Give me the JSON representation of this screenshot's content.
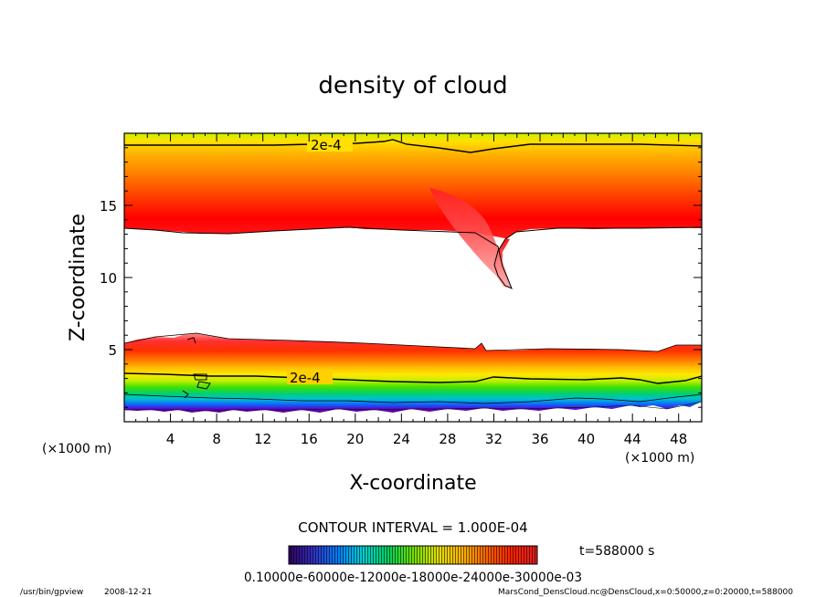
{
  "chart_data": {
    "type": "contour",
    "title": "density of cloud",
    "xlabel": "X-coordinate",
    "ylabel": "Z-coordinate",
    "x_unit": "(×1000 m)",
    "z_unit": "(×1000 m)",
    "xlim": [
      0,
      50
    ],
    "ylim": [
      0,
      20
    ],
    "x_ticks": [
      4,
      8,
      12,
      16,
      20,
      24,
      28,
      32,
      36,
      40,
      44,
      48
    ],
    "y_ticks": [
      5,
      10,
      15
    ],
    "contour_labels": [
      "2e-4",
      "2e-4"
    ],
    "contour_interval_text": "CONTOUR INTERVAL = 1.000E-04",
    "time_text": "t=588000 s",
    "colorbar_tick_text": "0.10000e-60000e-12000e-18000e-24000e-30000e-03",
    "color_stops": [
      "#5a0090",
      "#2040e0",
      "#00b0e0",
      "#00d070",
      "#40e000",
      "#c0f000",
      "#ffd000",
      "#ff9000",
      "#ff4000",
      "#ff0000",
      "#ff6060",
      "#ffb0b0"
    ],
    "regions": [
      {
        "name": "upper-cloud-layer",
        "z_bottom": 13.0,
        "z_top": 19.5,
        "peak_z": 15.5
      },
      {
        "name": "lower-cloud-layer",
        "z_bottom": 0.5,
        "z_top": 5.8,
        "peak_z": 4.5
      },
      {
        "name": "downdraft-tongue",
        "x_center": 32,
        "z_min": 9.2
      }
    ],
    "program_text": "/usr/bin/gpview",
    "date_text": "2008-12-21",
    "source_text": "MarsCond_DensCloud.nc@DensCloud,x=0:50000,z=0:20000,t=588000"
  }
}
